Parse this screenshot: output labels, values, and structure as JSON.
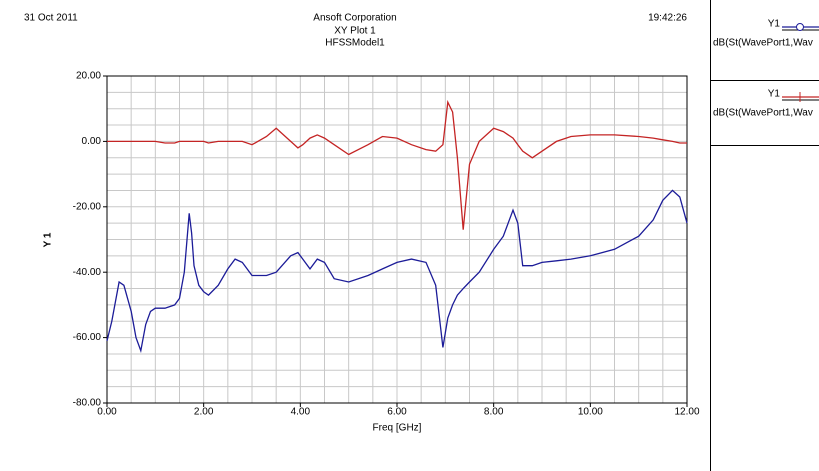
{
  "header": {
    "date": "31 Oct 2011",
    "company": "Ansoft Corporation",
    "plot_title": "XY Plot 1",
    "design": "HFSSModel1",
    "time": "19:42:26"
  },
  "chart_data": {
    "type": "line",
    "x_label": "Freq [GHz]",
    "y_label": "Y 1",
    "xlim": [
      0,
      12
    ],
    "ylim": [
      -80,
      20
    ],
    "xticks": [
      {
        "value": 0,
        "label": "0.00"
      },
      {
        "value": 2,
        "label": "2.00"
      },
      {
        "value": 4,
        "label": "4.00"
      },
      {
        "value": 6,
        "label": "6.00"
      },
      {
        "value": 8,
        "label": "8.00"
      },
      {
        "value": 10,
        "label": "10.00"
      },
      {
        "value": 12,
        "label": "12.00"
      }
    ],
    "yticks": [
      {
        "value": 20,
        "label": "20.00"
      },
      {
        "value": 0,
        "label": "0.00"
      },
      {
        "value": -20,
        "label": "-20.00"
      },
      {
        "value": -40,
        "label": "-40.00"
      },
      {
        "value": -60,
        "label": "-60.00"
      },
      {
        "value": -80,
        "label": "-80.00"
      }
    ],
    "grid": true,
    "minor_grid_step": [
      0.5,
      5
    ],
    "x": [
      0,
      0.1,
      0.25,
      0.35,
      0.5,
      0.6,
      0.7,
      0.8,
      0.9,
      1.0,
      1.2,
      1.4,
      1.5,
      1.6,
      1.7,
      1.75,
      1.8,
      1.9,
      2.0,
      2.1,
      2.3,
      2.5,
      2.65,
      2.8,
      3.0,
      3.3,
      3.5,
      3.8,
      3.95,
      4.05,
      4.2,
      4.35,
      4.5,
      4.7,
      5.0,
      5.4,
      5.7,
      6.0,
      6.3,
      6.6,
      6.8,
      6.95,
      7.05,
      7.15,
      7.25,
      7.37,
      7.5,
      7.7,
      8.0,
      8.2,
      8.4,
      8.5,
      8.6,
      8.8,
      9.0,
      9.3,
      9.6,
      10.0,
      10.5,
      11.0,
      11.3,
      11.5,
      11.7,
      11.85,
      12.0
    ],
    "series": [
      {
        "group": "Y1",
        "name": "dB(St(WavePort1,Wav",
        "color": "#1c1c98",
        "marker": "circle",
        "values": [
          -61,
          -55,
          -43,
          -44,
          -52,
          -60,
          -64,
          -56,
          -52,
          -51,
          -51,
          -50,
          -48,
          -40,
          -22,
          -28,
          -38,
          -44,
          -46,
          -47,
          -44,
          -39,
          -36,
          -37,
          -41,
          -41,
          -40,
          -35,
          -34,
          -36,
          -39,
          -36,
          -37,
          -42,
          -43,
          -41,
          -39,
          -37,
          -36,
          -37,
          -44,
          -63,
          -54,
          -50,
          -47,
          -45,
          -43,
          -40,
          -33,
          -29,
          -21,
          -25,
          -38,
          -38,
          -37,
          -36.5,
          -36,
          -35,
          -33,
          -29,
          -24,
          -18,
          -15,
          -17,
          -25
        ]
      },
      {
        "group": "Y1",
        "name": "dB(St(WavePort1,Wav",
        "color": "#c42424",
        "marker": "tick",
        "values": [
          0,
          0,
          0,
          0,
          0,
          0,
          0,
          0,
          0,
          0,
          -0.5,
          -0.5,
          0,
          0,
          0,
          0,
          0,
          0,
          0,
          -0.5,
          0,
          0,
          0,
          0,
          -1,
          1.5,
          4,
          0,
          -2,
          -1,
          1,
          2,
          1,
          -1,
          -4,
          -1,
          1.5,
          1,
          -1,
          -2.5,
          -3,
          -1,
          12,
          9,
          -5,
          -27,
          -7,
          0,
          4,
          3,
          1,
          -1,
          -3,
          -5,
          -3,
          0,
          1.5,
          2,
          2,
          1.5,
          1,
          0.5,
          0,
          -0.5,
          -0.5
        ]
      }
    ]
  }
}
